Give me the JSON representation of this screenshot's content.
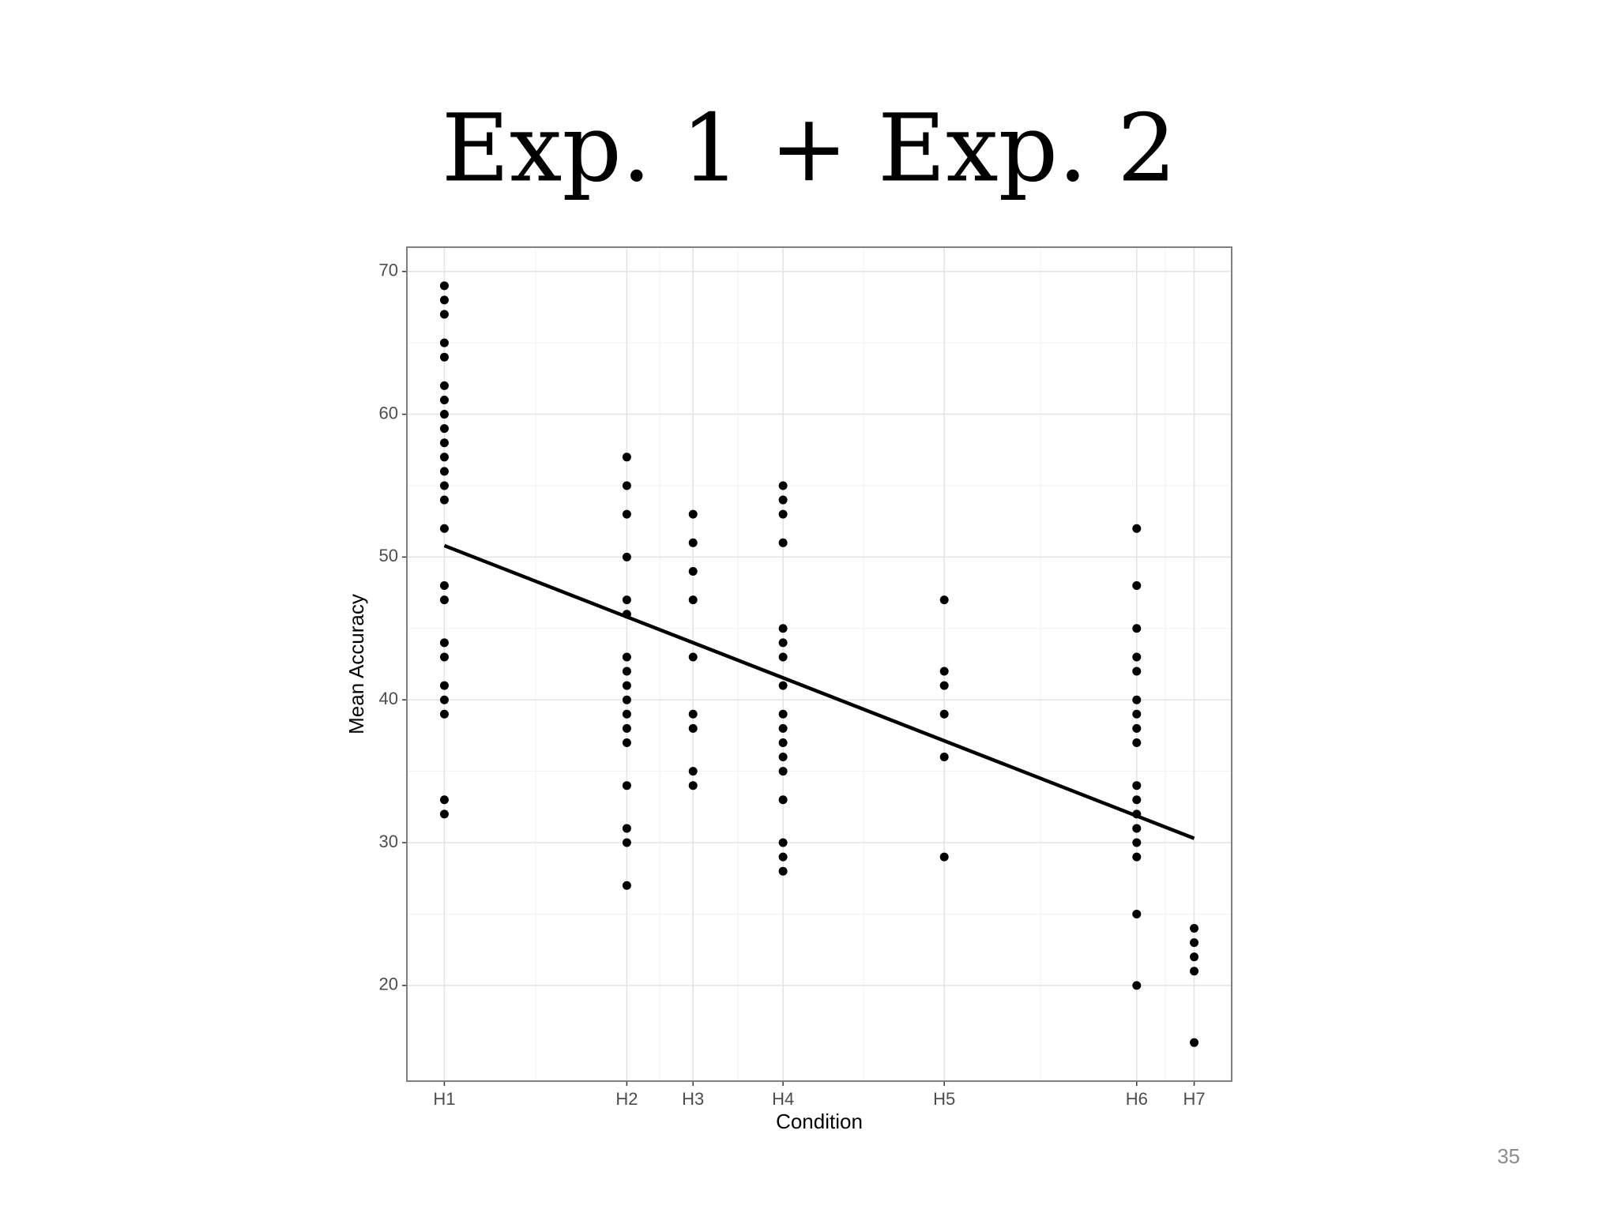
{
  "chart_data": {
    "type": "scatter",
    "title": "Exp. 1 + Exp. 2",
    "x_label": "Condition",
    "y_label": "Mean Accuracy",
    "xlim": [
      0.7,
      7.3
    ],
    "ylim": [
      13.3,
      71.7
    ],
    "xticks": [
      {
        "value": 1,
        "label": "H1"
      },
      {
        "value": 2.46,
        "label": "H2"
      },
      {
        "value": 2.99,
        "label": "H3"
      },
      {
        "value": 3.71,
        "label": "H4"
      },
      {
        "value": 5.0,
        "label": "H5"
      },
      {
        "value": 6.54,
        "label": "H6"
      },
      {
        "value": 7,
        "label": "H7"
      }
    ],
    "yticks": [
      20,
      30,
      40,
      50,
      60,
      70
    ],
    "grid": true,
    "series": [
      {
        "color": "#000000",
        "x": [
          1,
          1,
          1,
          1,
          1,
          1,
          1,
          1,
          1,
          1,
          1,
          1,
          1,
          1,
          1,
          1,
          1,
          1,
          1,
          1,
          1,
          1,
          1,
          1,
          2.46,
          2.46,
          2.46,
          2.46,
          2.46,
          2.46,
          2.46,
          2.46,
          2.46,
          2.46,
          2.46,
          2.46,
          2.46,
          2.46,
          2.46,
          2.46,
          2.46,
          2.99,
          2.99,
          2.99,
          2.99,
          2.99,
          2.99,
          2.99,
          2.99,
          2.99,
          3.71,
          3.71,
          3.71,
          3.71,
          3.71,
          3.71,
          3.71,
          3.71,
          3.71,
          3.71,
          3.71,
          3.71,
          3.71,
          3.71,
          3.71,
          3.71,
          3.71,
          5.0,
          5.0,
          5.0,
          5.0,
          5.0,
          5.0,
          6.54,
          6.54,
          6.54,
          6.54,
          6.54,
          6.54,
          6.54,
          6.54,
          6.54,
          6.54,
          6.54,
          6.54,
          6.54,
          6.54,
          6.54,
          6.54,
          6.54,
          7,
          7,
          7,
          7,
          7
        ],
        "values": [
          69,
          68,
          67,
          65,
          64,
          62,
          61,
          60,
          59,
          58,
          57,
          56,
          55,
          54,
          52,
          48,
          47,
          44,
          43,
          41,
          40,
          39,
          33,
          32,
          57,
          55,
          53,
          50,
          47,
          46,
          43,
          42,
          41,
          40,
          39,
          38,
          37,
          34,
          31,
          30,
          27,
          53,
          51,
          49,
          47,
          43,
          39,
          38,
          35,
          34,
          55,
          54,
          53,
          51,
          45,
          44,
          43,
          41,
          39,
          38,
          37,
          36,
          35,
          33,
          30,
          29,
          28,
          47,
          42,
          41,
          39,
          36,
          29,
          52,
          48,
          45,
          43,
          42,
          40,
          39,
          38,
          37,
          34,
          33,
          32,
          31,
          30,
          29,
          25,
          20,
          24,
          23,
          22,
          21,
          16
        ]
      }
    ],
    "trend": {
      "color": "#000000",
      "x": [
        1,
        7
      ],
      "values": [
        50.8,
        30.3
      ]
    }
  },
  "page_number": "35"
}
